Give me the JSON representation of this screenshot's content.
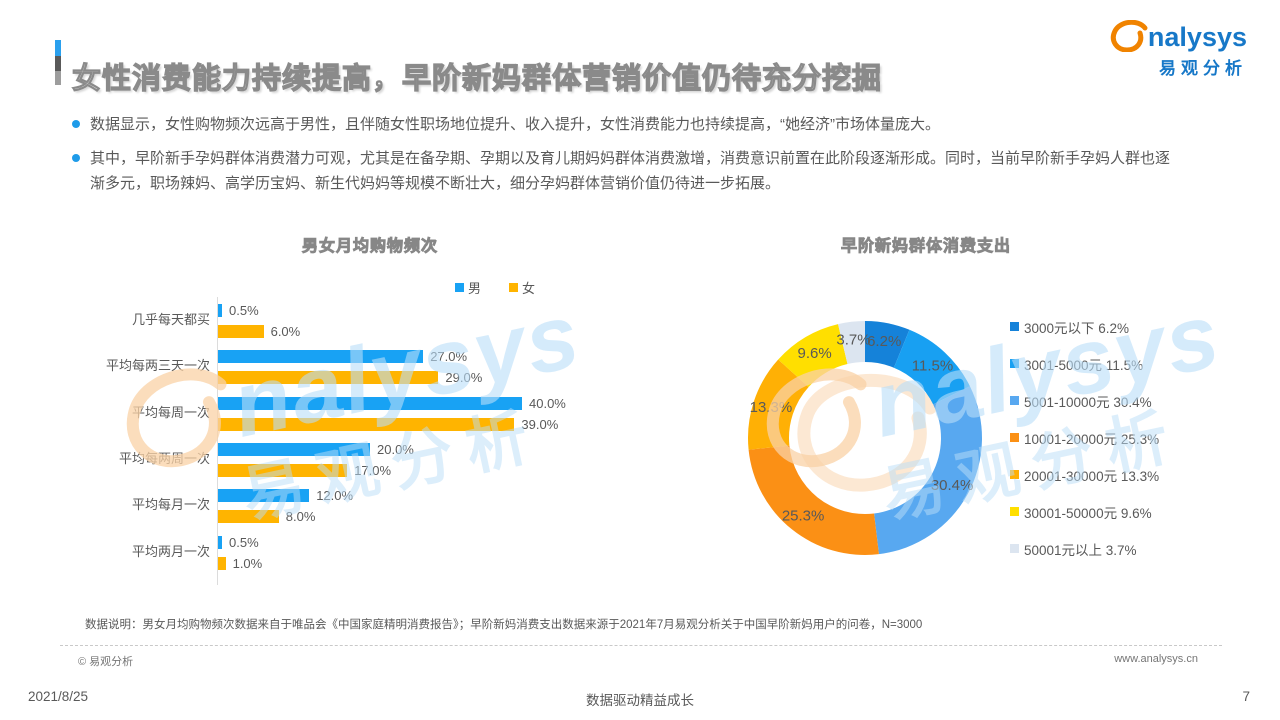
{
  "page": {
    "title": "女性消费能力持续提高，早阶新妈群体营销价值仍待充分挖掘",
    "logo": {
      "brand": "analysys",
      "brand_cn": "易观分析"
    },
    "bullets": [
      "数据显示，女性购物频次远高于男性，且伴随女性职场地位提升、收入提升，女性消费能力也持续提高，“她经济”市场体量庞大。",
      "其中，早阶新手孕妈群体消费潜力可观，尤其是在备孕期、孕期以及育儿期妈妈群体消费激增，消费意识前置在此阶段逐渐形成。同时，当前早阶新手孕妈人群也逐渐多元，职场辣妈、高学历宝妈、新生代妈妈等规模不断壮大，细分孕妈群体营销价值仍待进一步拓展。"
    ],
    "footnote": "数据说明：男女月均购物频次数据来自于唯品会《中国家庭精明消费报告》；早阶新妈消费支出数据来源于2021年7月易观分析关于中国早阶新妈用户的问卷，N=3000",
    "copyright": "© 易观分析",
    "website": "www.analysys.cn",
    "date": "2021/8/25",
    "slogan": "数据驱动精益成长",
    "page_number": "7"
  },
  "colors": {
    "accent_blue": "#1E9BE9",
    "brand_blue": "#1778C8",
    "brand_orange": "#F08300",
    "text_gray": "#595959"
  },
  "chart_data": [
    {
      "type": "bar",
      "orientation": "horizontal",
      "title": "男女月均购物频次",
      "categories": [
        "几乎每天都买",
        "平均每两三天一次",
        "平均每周一次",
        "平均每两周一次",
        "平均每月一次",
        "平均两月一次"
      ],
      "series": [
        {
          "name": "男",
          "color": "#18A2F4",
          "values": [
            0.5,
            27.0,
            40.0,
            20.0,
            12.0,
            0.5
          ]
        },
        {
          "name": "女",
          "color": "#FFB400",
          "values": [
            6.0,
            29.0,
            39.0,
            17.0,
            8.0,
            1.0
          ]
        }
      ],
      "unit": "%",
      "xlim": [
        0,
        45
      ],
      "grid": false,
      "legend_position": "top"
    },
    {
      "type": "pie",
      "donut": true,
      "title": "早阶新妈群体消费支出",
      "slices": [
        {
          "label": "3000元以下",
          "value": 6.2,
          "color": "#1582D9"
        },
        {
          "label": "3001-5000元",
          "value": 11.5,
          "color": "#18A0F2"
        },
        {
          "label": "5001-10000元",
          "value": 30.4,
          "color": "#58A8F0"
        },
        {
          "label": "10001-20000元",
          "value": 25.3,
          "color": "#FB9015"
        },
        {
          "label": "20001-30000元",
          "value": 13.3,
          "color": "#FFB005"
        },
        {
          "label": "30001-50000元",
          "value": 9.6,
          "color": "#FFDF00"
        },
        {
          "label": "50001元以上",
          "value": 3.7,
          "color": "#DCE5F0"
        }
      ],
      "unit": "%",
      "legend_position": "right"
    }
  ]
}
